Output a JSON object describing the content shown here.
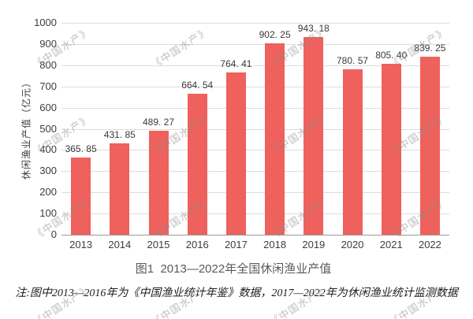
{
  "watermark": {
    "text": "《中国水产》"
  },
  "chart_data": {
    "type": "bar",
    "title": "图1  2013—2022年全国休闲渔业产值",
    "ylabel": "休闲渔业产值（亿元）",
    "xlabel": "",
    "categories": [
      "2013",
      "2014",
      "2015",
      "2016",
      "2017",
      "2018",
      "2019",
      "2020",
      "2021",
      "2022"
    ],
    "values": [
      365.85,
      431.85,
      489.27,
      664.54,
      764.41,
      902.25,
      943.18,
      780.57,
      805.4,
      839.25
    ],
    "value_labels": [
      "365. 85",
      "431. 85",
      "489. 27",
      "664. 54",
      "764. 41",
      "902. 25",
      "943. 18",
      "780. 57",
      "805. 40",
      "839. 25"
    ],
    "ylim": [
      0,
      1000
    ],
    "ytick_step": 100,
    "yticks": [
      "0",
      "100",
      "200",
      "300",
      "400",
      "500",
      "600",
      "700",
      "800",
      "900",
      "1000"
    ],
    "grid": true,
    "legend_position": "none",
    "bar_color": "#EE615C",
    "note": "注:图中2013—2016年为《中国渔业统计年鉴》数据，2017—2022年为休闲渔业统计监测数据"
  }
}
